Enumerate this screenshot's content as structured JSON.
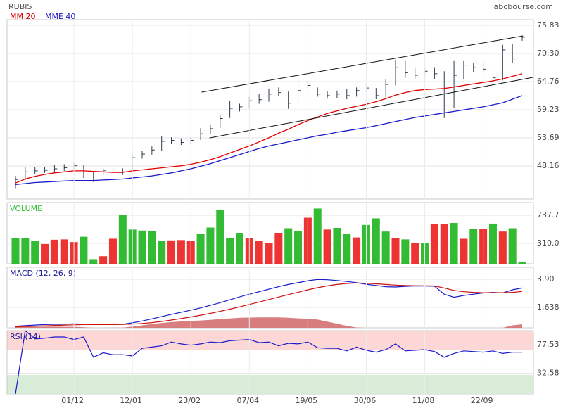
{
  "source": "abcbourse.com",
  "chart_data": [
    {
      "type": "ohlc",
      "title": "RUBIS",
      "color": "#2b3b4b",
      "ylim": [
        41.65,
        76.94
      ],
      "yticks": [
        75.83,
        {
          "value": 70.3,
          "label": "70.30"
        },
        64.76,
        59.23,
        53.69,
        48.16
      ],
      "grid": true,
      "high": [
        46.2,
        48.0,
        47.9,
        47.9,
        48.3,
        48.5,
        48.8,
        48.4,
        47.0,
        47.8,
        47.9,
        47.7,
        50.6,
        51.2,
        52.0,
        54.0,
        53.8,
        53.6,
        53.8,
        55.6,
        56.2,
        58.3,
        61.0,
        60.4,
        61.8,
        62.3,
        63.4,
        63.6,
        62.8,
        65.8,
        64.8,
        63.6,
        62.8,
        63.0,
        63.3,
        63.6,
        64.5,
        63.5,
        65.2,
        69.0,
        68.8,
        67.6,
        67.6,
        67.6,
        66.8,
        68.8,
        68.8,
        68.5,
        68.6,
        67.2,
        72.0,
        72.2,
        73.8
      ],
      "low": [
        43.8,
        45.4,
        46.5,
        46.8,
        47.0,
        47.2,
        47.5,
        45.8,
        45.0,
        46.3,
        46.9,
        46.4,
        47.2,
        49.6,
        50.4,
        51.1,
        52.5,
        52.3,
        52.6,
        53.3,
        54.4,
        55.6,
        57.6,
        58.9,
        59.4,
        60.4,
        60.8,
        61.9,
        59.4,
        60.5,
        63.2,
        61.8,
        61.4,
        61.5,
        61.3,
        61.8,
        62.8,
        61.3,
        61.7,
        64.0,
        65.5,
        65.3,
        65.6,
        65.2,
        57.6,
        59.5,
        65.3,
        66.7,
        66.4,
        64.9,
        65.0,
        68.5,
        72.8
      ],
      "close": [
        45.5,
        47.0,
        47.2,
        47.3,
        47.6,
        47.8,
        48.2,
        46.0,
        46.0,
        47.3,
        47.4,
        47.0,
        49.8,
        50.5,
        51.3,
        53.0,
        53.2,
        52.8,
        53.2,
        54.5,
        55.5,
        57.5,
        59.5,
        59.8,
        61.0,
        61.2,
        62.3,
        62.6,
        60.5,
        63.0,
        64.0,
        62.3,
        62.0,
        62.3,
        62.0,
        63.0,
        63.5,
        62.0,
        64.2,
        67.5,
        66.5,
        66.0,
        66.8,
        66.3,
        60.0,
        66.0,
        68.0,
        67.5,
        67.2,
        65.5,
        71.0,
        69.0,
        73.5
      ],
      "series": [
        {
          "name": "MM 20",
          "color": "#e00000",
          "values": [
            44.8,
            45.6,
            46.1,
            46.5,
            46.8,
            47.0,
            47.2,
            47.2,
            47.1,
            47.0,
            46.9,
            46.9,
            47.2,
            47.4,
            47.6,
            47.8,
            48.0,
            48.2,
            48.5,
            48.9,
            49.4,
            50.0,
            50.7,
            51.4,
            52.1,
            52.9,
            53.7,
            54.6,
            55.4,
            56.3,
            57.1,
            57.8,
            58.5,
            59.0,
            59.5,
            59.9,
            60.3,
            60.8,
            61.4,
            62.1,
            62.6,
            63.0,
            63.2,
            63.3,
            63.4,
            63.7,
            64.0,
            64.3,
            64.6,
            64.9,
            65.3,
            65.8,
            66.3
          ]
        },
        {
          "name": "MME 40",
          "color": "#1a1acc",
          "values": [
            44.5,
            44.7,
            44.9,
            45.0,
            45.1,
            45.2,
            45.3,
            45.3,
            45.3,
            45.4,
            45.5,
            45.6,
            45.8,
            46.0,
            46.2,
            46.5,
            46.8,
            47.2,
            47.6,
            48.1,
            48.6,
            49.2,
            49.8,
            50.4,
            51.0,
            51.6,
            52.1,
            52.5,
            52.9,
            53.3,
            53.7,
            54.1,
            54.4,
            54.8,
            55.1,
            55.4,
            55.7,
            56.1,
            56.5,
            56.9,
            57.3,
            57.7,
            58.0,
            58.3,
            58.6,
            58.9,
            59.2,
            59.5,
            59.8,
            60.2,
            60.6,
            61.3,
            62.0
          ]
        }
      ],
      "trendlines": [
        {
          "color": "#111111",
          "x": [
            19.1,
            52.1
          ],
          "y": [
            62.68,
            73.75
          ]
        },
        {
          "color": "#111111",
          "x": [
            19.9,
            53.1
          ],
          "y": [
            53.68,
            65.59
          ]
        }
      ]
    },
    {
      "type": "bar",
      "title": "VOLUME",
      "title_color": "#33bb33",
      "ylim": [
        0,
        930
      ],
      "yticks": [
        737.7,
        {
          "value": 310,
          "label": "310.0"
        }
      ],
      "grid": true,
      "values": [
        395,
        395,
        345,
        300,
        365,
        370,
        330,
        410,
        70,
        115,
        380,
        740,
        520,
        505,
        500,
        345,
        355,
        360,
        350,
        450,
        550,
        820,
        385,
        470,
        395,
        350,
        310,
        470,
        540,
        500,
        700,
        840,
        520,
        545,
        450,
        400,
        590,
        690,
        490,
        390,
        370,
        320,
        310,
        600,
        600,
        620,
        380,
        530,
        530,
        610,
        490,
        540,
        30
      ],
      "colors": [
        "#33bb33",
        "#33bb33",
        "#33bb33",
        "#ee3333",
        "#ee3333",
        "#ee3333",
        "#ee3333",
        "#33bb33",
        "#33bb33",
        "#ee3333",
        "#ee3333",
        "#33bb33",
        "#33bb33",
        "#33bb33",
        "#33bb33",
        "#33bb33",
        "#ee3333",
        "#ee3333",
        "#ee3333",
        "#33bb33",
        "#33bb33",
        "#33bb33",
        "#33bb33",
        "#33bb33",
        "#ee3333",
        "#ee3333",
        "#ee3333",
        "#ee3333",
        "#33bb33",
        "#33bb33",
        "#ee3333",
        "#33bb33",
        "#ee3333",
        "#33bb33",
        "#33bb33",
        "#ee3333",
        "#33bb33",
        "#33bb33",
        "#33bb33",
        "#ee3333",
        "#33bb33",
        "#ee3333",
        "#33bb33",
        "#ee3333",
        "#ee3333",
        "#33bb33",
        "#ee3333",
        "#33bb33",
        "#ee3333",
        "#33bb33",
        "#ee3333",
        "#33bb33",
        "#33bb33"
      ]
    },
    {
      "type": "macd",
      "title": "MACD (12, 26, 9)",
      "title_color": "#1a1a99",
      "ylim": [
        0,
        4.86
      ],
      "yticks": [
        {
          "value": 3.9,
          "label": "3.90"
        },
        1.638
      ],
      "grid": true,
      "series": [
        {
          "color": "#1a1acc",
          "values": [
            0.13,
            0.18,
            0.22,
            0.26,
            0.28,
            0.3,
            0.32,
            0.3,
            0.26,
            0.26,
            0.27,
            0.28,
            0.4,
            0.55,
            0.72,
            0.9,
            1.08,
            1.25,
            1.42,
            1.6,
            1.8,
            2.02,
            2.25,
            2.48,
            2.7,
            2.9,
            3.1,
            3.3,
            3.48,
            3.62,
            3.78,
            3.88,
            3.86,
            3.8,
            3.72,
            3.62,
            3.5,
            3.4,
            3.3,
            3.28,
            3.33,
            3.36,
            3.35,
            3.34,
            2.7,
            2.45,
            2.6,
            2.7,
            2.8,
            2.85,
            2.8,
            3.05,
            3.2
          ]
        },
        {
          "color": "#cc1111",
          "values": [
            0.08,
            0.1,
            0.13,
            0.16,
            0.19,
            0.22,
            0.24,
            0.26,
            0.26,
            0.26,
            0.26,
            0.27,
            0.3,
            0.35,
            0.42,
            0.51,
            0.62,
            0.74,
            0.87,
            1.01,
            1.16,
            1.32,
            1.5,
            1.68,
            1.88,
            2.07,
            2.27,
            2.47,
            2.67,
            2.86,
            3.05,
            3.22,
            3.37,
            3.48,
            3.56,
            3.6,
            3.58,
            3.53,
            3.48,
            3.43,
            3.4,
            3.38,
            3.37,
            3.36,
            3.2,
            3.0,
            2.9,
            2.85,
            2.82,
            2.82,
            2.82,
            2.85,
            2.92
          ]
        }
      ],
      "histogram": {
        "color": "#d47070",
        "values": [
          0.05,
          0.08,
          0.09,
          0.1,
          0.09,
          0.08,
          0.08,
          0.04,
          0,
          0,
          0.01,
          0.01,
          0.1,
          0.2,
          0.3,
          0.39,
          0.46,
          0.51,
          0.55,
          0.59,
          0.64,
          0.7,
          0.75,
          0.8,
          0.82,
          0.83,
          0.83,
          0.83,
          0.81,
          0.76,
          0.73,
          0.66,
          0.49,
          0.32,
          0.16,
          0.02,
          0,
          0,
          0,
          0,
          0,
          0,
          0,
          0,
          0,
          0,
          0,
          0,
          0,
          0,
          0,
          0.2,
          0.28
        ]
      }
    },
    {
      "type": "line",
      "title": "RSI (14)",
      "title_color": "#1a1a99",
      "color": "#1a1acc",
      "ylim": [
        0,
        100
      ],
      "yticks": [
        77.53,
        32.58
      ],
      "grid": true,
      "zones": [
        {
          "from": 70,
          "to": 100,
          "color": "#fdd6d6"
        },
        {
          "from": 0,
          "to": 30,
          "color": "#d8ecd8"
        }
      ],
      "values": [
        0,
        100,
        87,
        88,
        90,
        90,
        86,
        90,
        58,
        65,
        62,
        62,
        60,
        72,
        74,
        76,
        82,
        79,
        77,
        79,
        82,
        81,
        84,
        85,
        86,
        81,
        82,
        76,
        80,
        79,
        82,
        73,
        72,
        72,
        68,
        74,
        69,
        66,
        70,
        79,
        68,
        69,
        70,
        67,
        58,
        64,
        68,
        67,
        66,
        68,
        64,
        66,
        66
      ],
      "categories": [
        null,
        null,
        null,
        null,
        null,
        null,
        "01/12",
        null,
        null,
        null,
        null,
        null,
        "12/01",
        null,
        null,
        null,
        null,
        null,
        "23/02",
        null,
        null,
        null,
        null,
        null,
        "07/04",
        null,
        null,
        null,
        null,
        null,
        "19/05",
        null,
        null,
        null,
        null,
        null,
        "30/06",
        null,
        null,
        null,
        null,
        null,
        "11/08",
        null,
        null,
        null,
        null,
        null,
        "22/09",
        null,
        null,
        null,
        null
      ]
    }
  ]
}
